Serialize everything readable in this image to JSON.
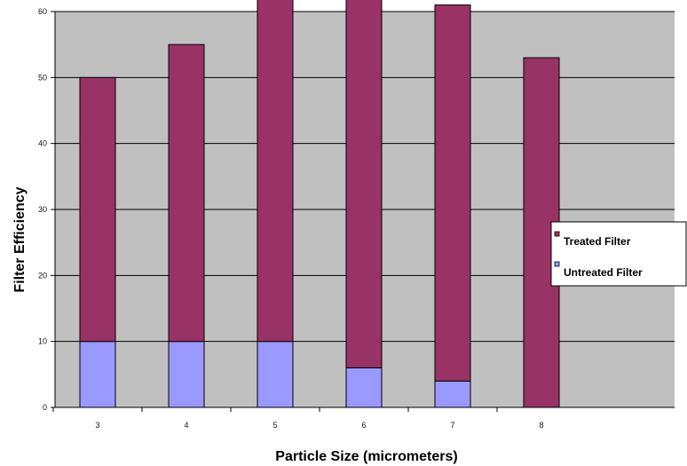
{
  "chart_data": {
    "type": "bar",
    "stacked": true,
    "categories": [
      "3",
      "4",
      "5",
      "6",
      "7",
      "8"
    ],
    "series": [
      {
        "name": "Untreated Filter",
        "values": [
          10,
          10,
          10,
          6,
          4,
          0
        ],
        "color": "#9999ff"
      },
      {
        "name": "Treated Filter",
        "values": [
          40,
          45,
          55,
          56,
          57,
          53
        ],
        "color": "#993366"
      }
    ],
    "xlabel": "Particle Size (micrometers)",
    "ylabel": "Filter Efficiency",
    "ylim": [
      0,
      60
    ],
    "yticks": [
      "0",
      "10",
      "20",
      "30",
      "40",
      "50",
      "60"
    ],
    "grid": true,
    "legend_position": "right",
    "plot_background": "#c0c0c0"
  }
}
